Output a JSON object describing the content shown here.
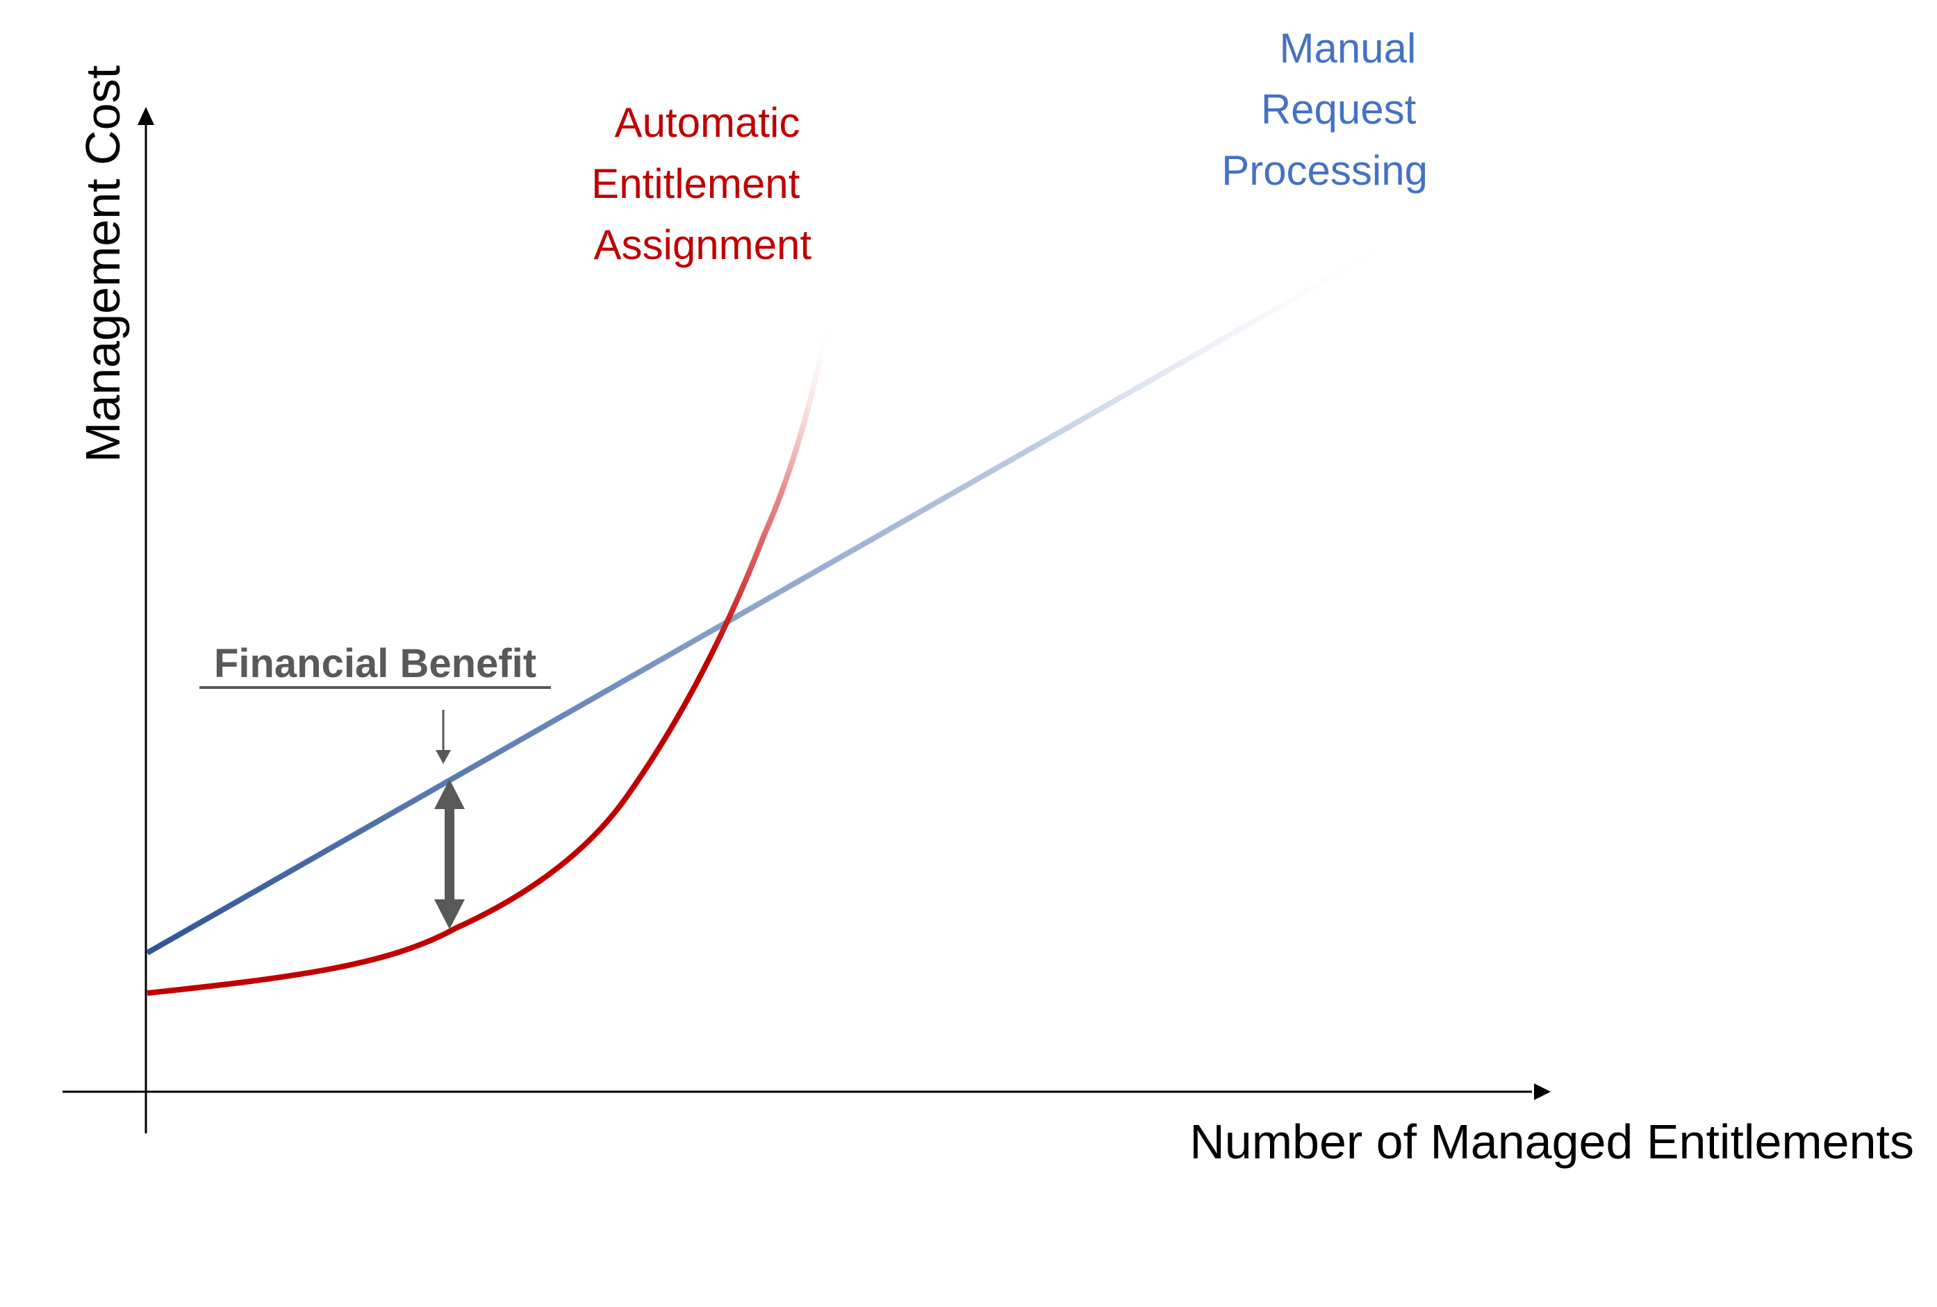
{
  "axes": {
    "y_label": "Management Cost",
    "x_label": "Number of Managed Entitlements"
  },
  "series": {
    "manual": {
      "label_lines": [
        "Manual",
        "Request",
        "Processing"
      ],
      "color": "#2f5597",
      "label_color": "#4472c4"
    },
    "automatic": {
      "label_lines": [
        "Automatic",
        "Entitlement",
        "Assignment"
      ],
      "color": "#c00000",
      "label_color": "#c00000"
    }
  },
  "annotation": {
    "label": "Financial Benefit",
    "color": "#595959"
  }
}
